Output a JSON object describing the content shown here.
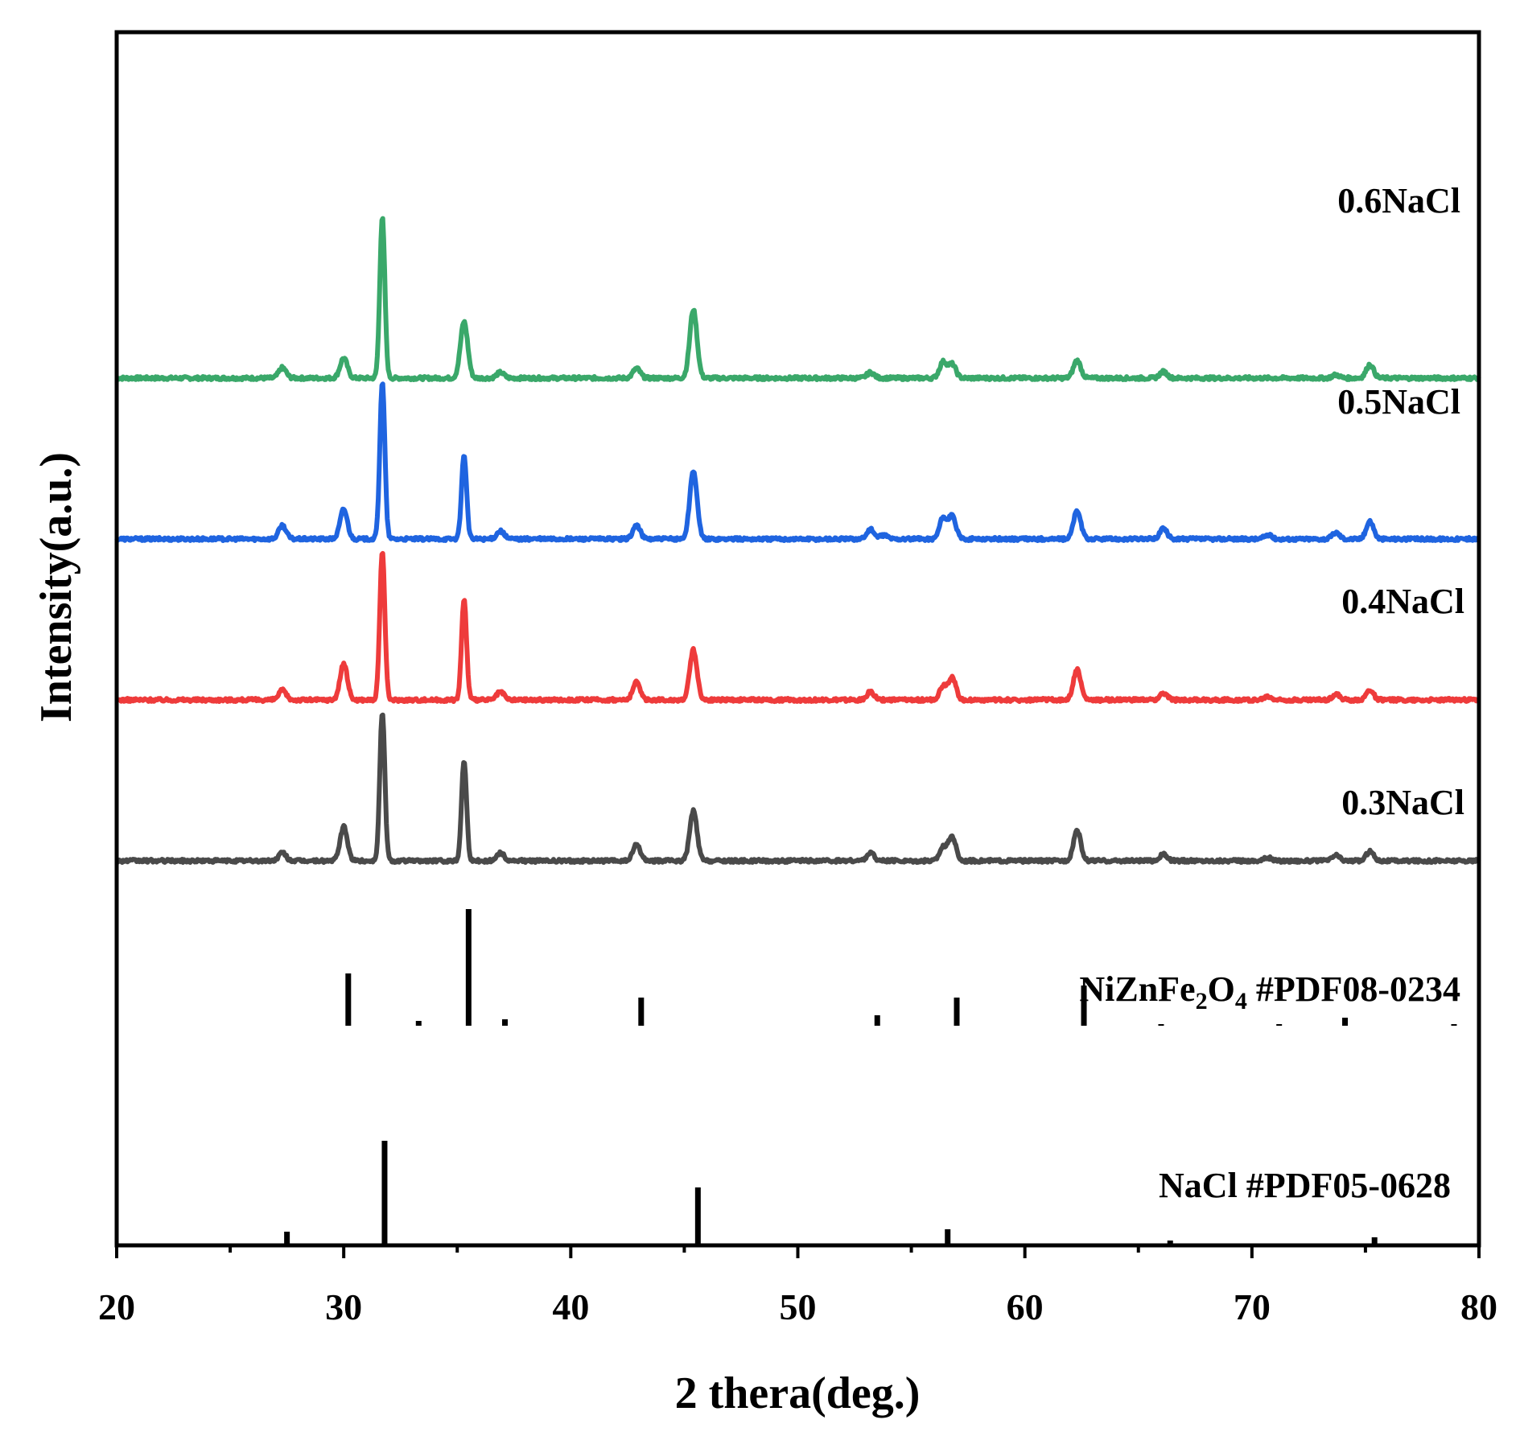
{
  "chart_data": {
    "type": "line",
    "xlabel": "2 thera(deg.)",
    "ylabel": "Intensity(a.u.)",
    "xlim": [
      20,
      80
    ],
    "xticks": [
      "20",
      "30",
      "40",
      "50",
      "60",
      "70",
      "80"
    ],
    "y_tick_labels": "none",
    "grid": false,
    "legend": "inline labels at right of each trace",
    "series": [
      {
        "name": "0.6NaCl",
        "color": "#3aa86a",
        "baseline": 6.1,
        "peaks": [
          {
            "x": 27.3,
            "h": 0.13
          },
          {
            "x": 30.0,
            "h": 0.25
          },
          {
            "x": 31.7,
            "h": 2.0
          },
          {
            "x": 35.3,
            "h": 0.7
          },
          {
            "x": 36.9,
            "h": 0.07
          },
          {
            "x": 42.9,
            "h": 0.12
          },
          {
            "x": 45.4,
            "h": 0.85
          },
          {
            "x": 53.2,
            "h": 0.07
          },
          {
            "x": 56.4,
            "h": 0.2
          },
          {
            "x": 56.8,
            "h": 0.17
          },
          {
            "x": 62.3,
            "h": 0.22
          },
          {
            "x": 66.1,
            "h": 0.08
          },
          {
            "x": 73.7,
            "h": 0.04
          },
          {
            "x": 75.2,
            "h": 0.17
          }
        ]
      },
      {
        "name": "0.5NaCl",
        "color": "#1f64e0",
        "baseline": 4.1,
        "peaks": [
          {
            "x": 27.3,
            "h": 0.17
          },
          {
            "x": 30.0,
            "h": 0.37
          },
          {
            "x": 31.7,
            "h": 1.95
          },
          {
            "x": 35.3,
            "h": 1.05
          },
          {
            "x": 36.9,
            "h": 0.1
          },
          {
            "x": 42.9,
            "h": 0.17
          },
          {
            "x": 45.4,
            "h": 0.85
          },
          {
            "x": 53.2,
            "h": 0.12
          },
          {
            "x": 53.8,
            "h": 0.05
          },
          {
            "x": 56.4,
            "h": 0.26
          },
          {
            "x": 56.8,
            "h": 0.28
          },
          {
            "x": 62.3,
            "h": 0.35
          },
          {
            "x": 66.1,
            "h": 0.13
          },
          {
            "x": 70.7,
            "h": 0.05
          },
          {
            "x": 73.7,
            "h": 0.08
          },
          {
            "x": 75.2,
            "h": 0.22
          }
        ]
      },
      {
        "name": "0.4NaCl",
        "color": "#ee3b3b",
        "baseline": 2.1,
        "peaks": [
          {
            "x": 27.3,
            "h": 0.12
          },
          {
            "x": 30.0,
            "h": 0.45
          },
          {
            "x": 31.7,
            "h": 1.85
          },
          {
            "x": 35.3,
            "h": 1.25
          },
          {
            "x": 36.9,
            "h": 0.1
          },
          {
            "x": 42.9,
            "h": 0.22
          },
          {
            "x": 45.4,
            "h": 0.62
          },
          {
            "x": 53.2,
            "h": 0.1
          },
          {
            "x": 56.4,
            "h": 0.17
          },
          {
            "x": 56.8,
            "h": 0.28
          },
          {
            "x": 62.3,
            "h": 0.38
          },
          {
            "x": 66.1,
            "h": 0.08
          },
          {
            "x": 70.7,
            "h": 0.04
          },
          {
            "x": 73.7,
            "h": 0.07
          },
          {
            "x": 75.2,
            "h": 0.12
          }
        ]
      },
      {
        "name": "0.3NaCl",
        "color": "#4a4a4a",
        "baseline": 0.1,
        "peaks": [
          {
            "x": 27.3,
            "h": 0.1
          },
          {
            "x": 30.0,
            "h": 0.42
          },
          {
            "x": 31.7,
            "h": 1.85
          },
          {
            "x": 35.3,
            "h": 1.25
          },
          {
            "x": 36.9,
            "h": 0.1
          },
          {
            "x": 42.9,
            "h": 0.2
          },
          {
            "x": 45.4,
            "h": 0.62
          },
          {
            "x": 53.2,
            "h": 0.1
          },
          {
            "x": 56.4,
            "h": 0.17
          },
          {
            "x": 56.8,
            "h": 0.3
          },
          {
            "x": 62.3,
            "h": 0.38
          },
          {
            "x": 66.1,
            "h": 0.08
          },
          {
            "x": 70.7,
            "h": 0.04
          },
          {
            "x": 73.7,
            "h": 0.07
          },
          {
            "x": 75.2,
            "h": 0.12
          }
        ]
      }
    ],
    "reference_patterns": [
      {
        "name": "NiZnFe2O4 #PDF08-0234",
        "label_main": "NiZnFe",
        "label_sub1": "2",
        "label_mid": "O",
        "label_sub2": "4",
        "label_tail": " #PDF08-0234",
        "baseline": -1.95,
        "lines": [
          {
            "x": 30.2,
            "h": 0.65
          },
          {
            "x": 33.3,
            "h": 0.06
          },
          {
            "x": 35.5,
            "h": 1.45
          },
          {
            "x": 37.1,
            "h": 0.08
          },
          {
            "x": 43.1,
            "h": 0.35
          },
          {
            "x": 53.5,
            "h": 0.13
          },
          {
            "x": 57.0,
            "h": 0.35
          },
          {
            "x": 62.6,
            "h": 0.5
          },
          {
            "x": 66.0,
            "h": 0.02
          },
          {
            "x": 71.2,
            "h": 0.02
          },
          {
            "x": 74.1,
            "h": 0.1
          },
          {
            "x": 78.9,
            "h": 0.02
          }
        ]
      },
      {
        "name": "NaCl #PDF05-0628",
        "label": "NaCl #PDF05-0628",
        "baseline": -3.9,
        "lines": [
          {
            "x": 27.5,
            "h": 0.17
          },
          {
            "x": 31.8,
            "h": 1.3
          },
          {
            "x": 45.6,
            "h": 0.72
          },
          {
            "x": 54.0,
            "h": 0.02
          },
          {
            "x": 56.6,
            "h": 0.2
          },
          {
            "x": 66.4,
            "h": 0.06
          },
          {
            "x": 75.4,
            "h": 0.1
          }
        ]
      }
    ]
  }
}
